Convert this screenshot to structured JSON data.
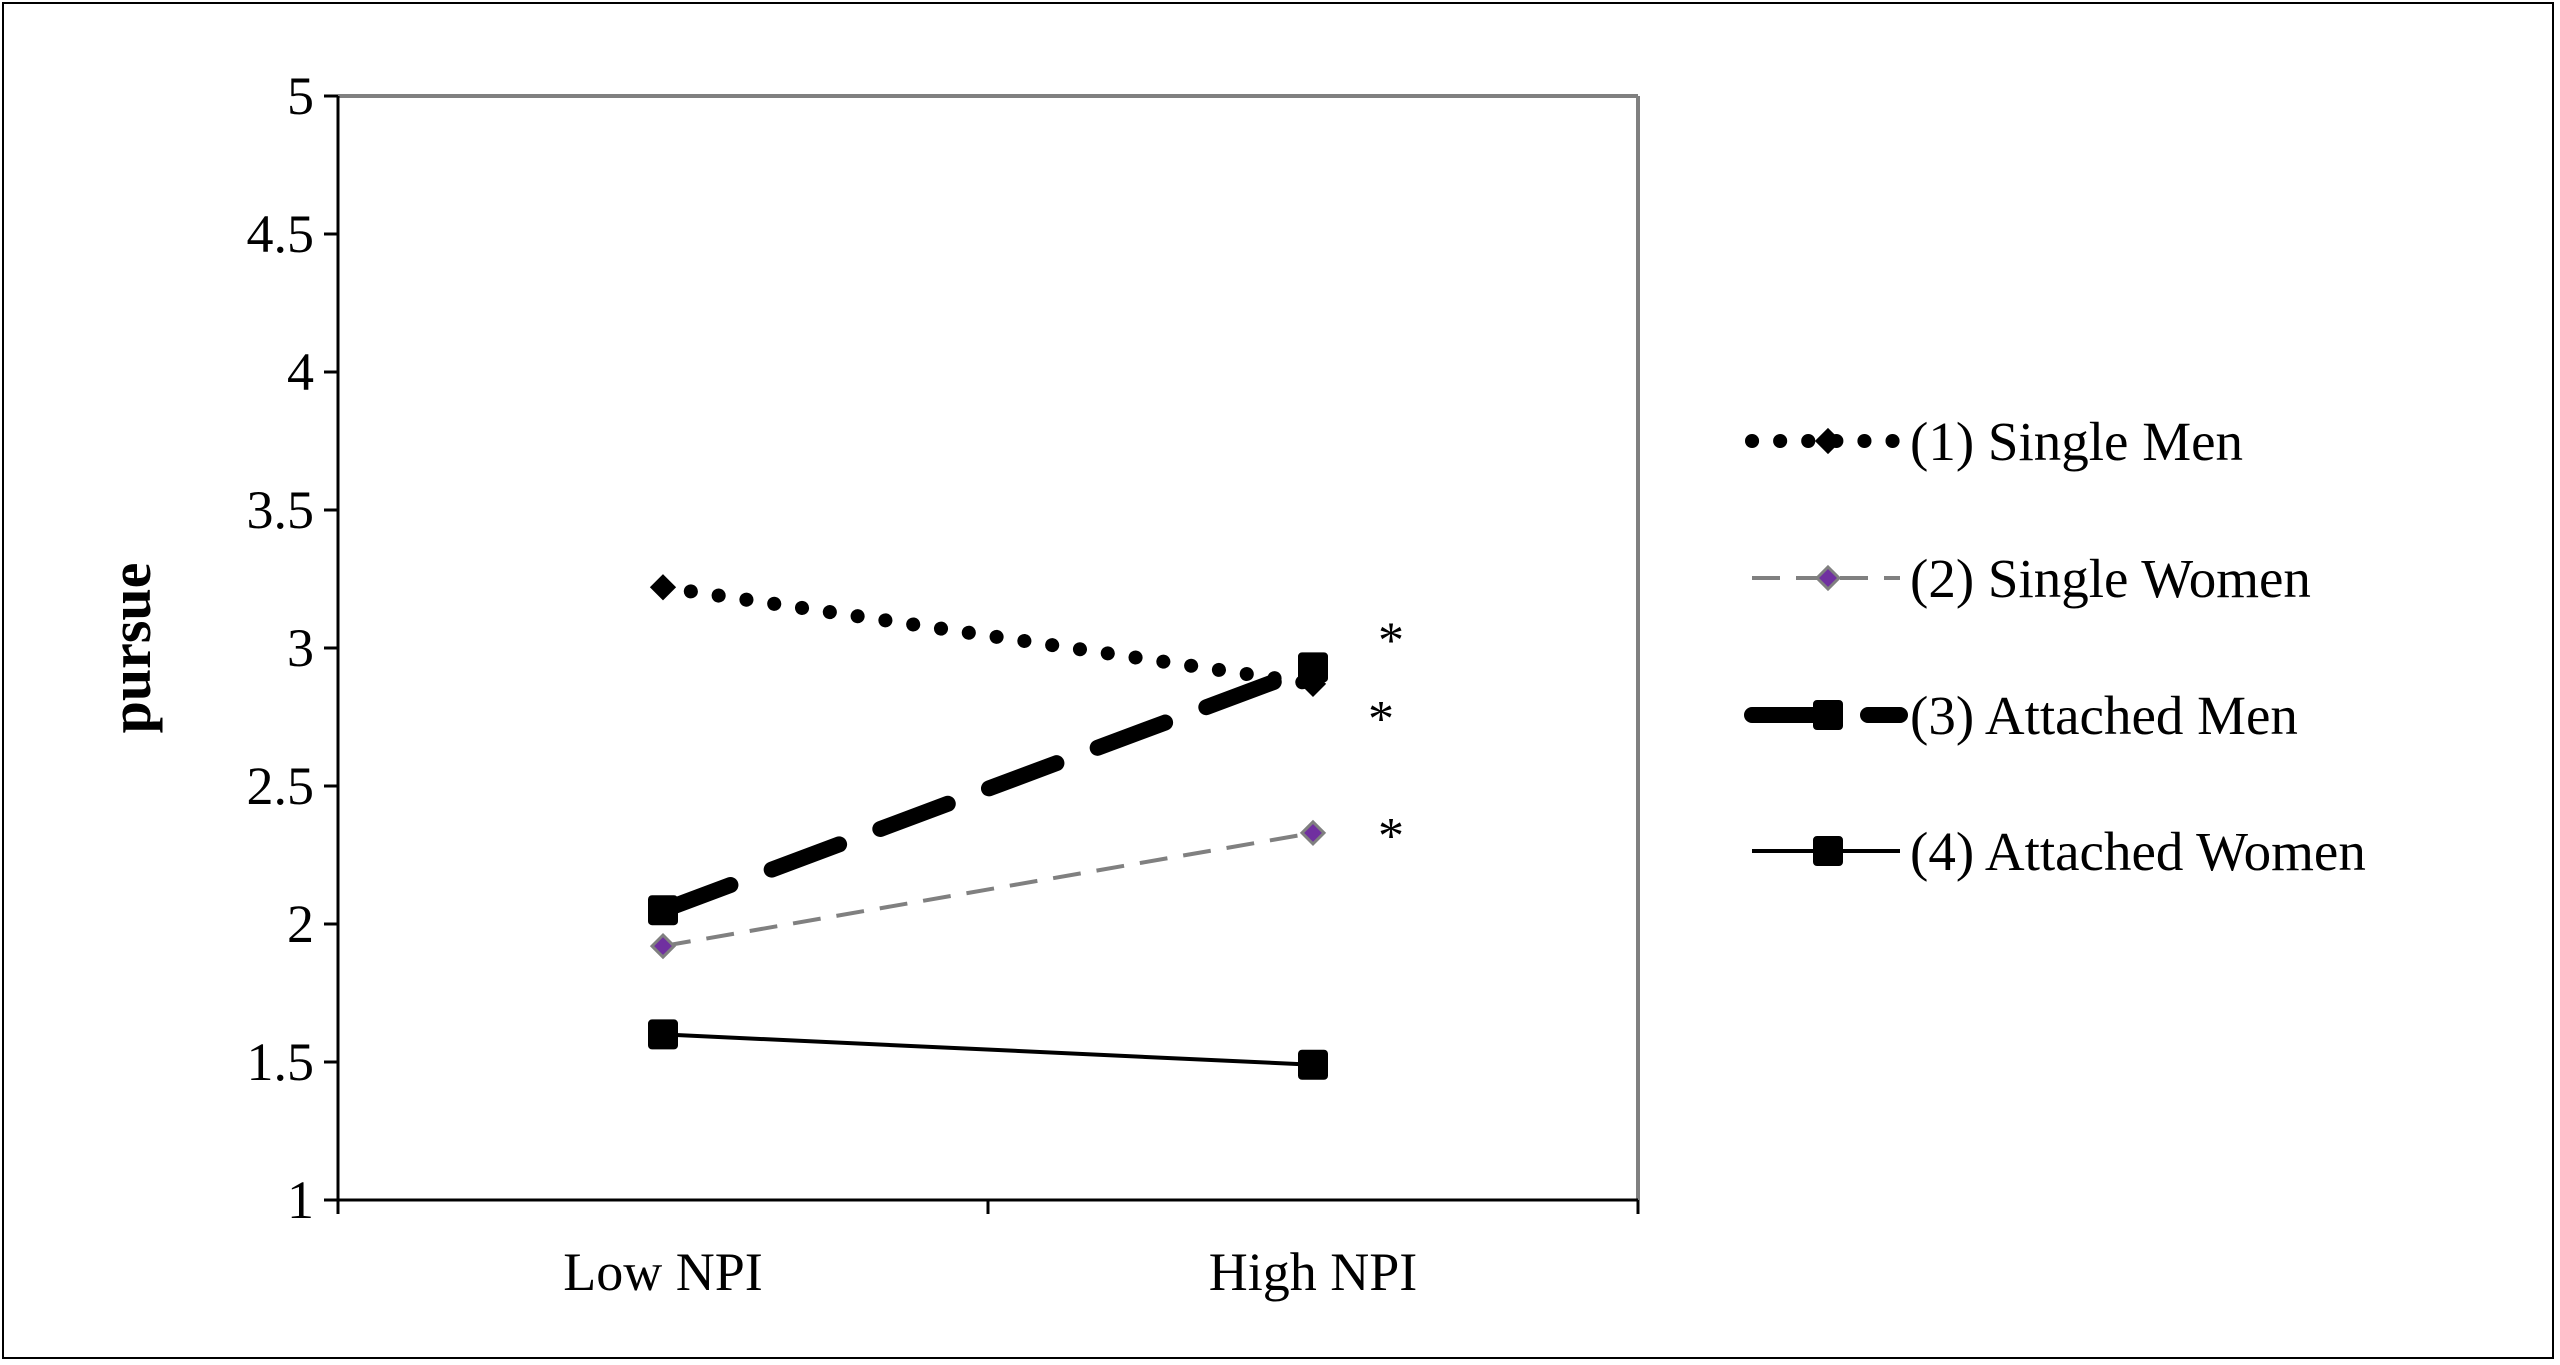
{
  "chart_data": {
    "type": "line",
    "title": "",
    "xlabel": "",
    "ylabel": "pursue",
    "categories": [
      "Low NPI",
      "High NPI"
    ],
    "ylim": [
      1,
      5
    ],
    "yticks": [
      "1",
      "1.5",
      "2",
      "2.5",
      "3",
      "3.5",
      "4",
      "4.5",
      "5"
    ],
    "grid": false,
    "legend_position": "right",
    "series": [
      {
        "name": "(1) Single Men",
        "values": [
          3.22,
          2.87
        ],
        "style": "dotted-thick",
        "marker": "diamond",
        "color": "#000000",
        "marker_fill": "#000000"
      },
      {
        "name": "(2) Single Women",
        "values": [
          1.92,
          2.33
        ],
        "style": "dashed-thin",
        "marker": "diamond",
        "color": "#808080",
        "marker_fill": "#7030a0"
      },
      {
        "name": "(3) Attached Men",
        "values": [
          2.05,
          2.93
        ],
        "style": "dashed-thick",
        "marker": "square",
        "color": "#000000",
        "marker_fill": "#000000"
      },
      {
        "name": "(4) Attached Women",
        "values": [
          1.6,
          1.49
        ],
        "style": "solid",
        "marker": "square",
        "color": "#000000",
        "marker_fill": "#000000"
      }
    ],
    "annotations": [
      "*",
      "*",
      "*"
    ]
  }
}
